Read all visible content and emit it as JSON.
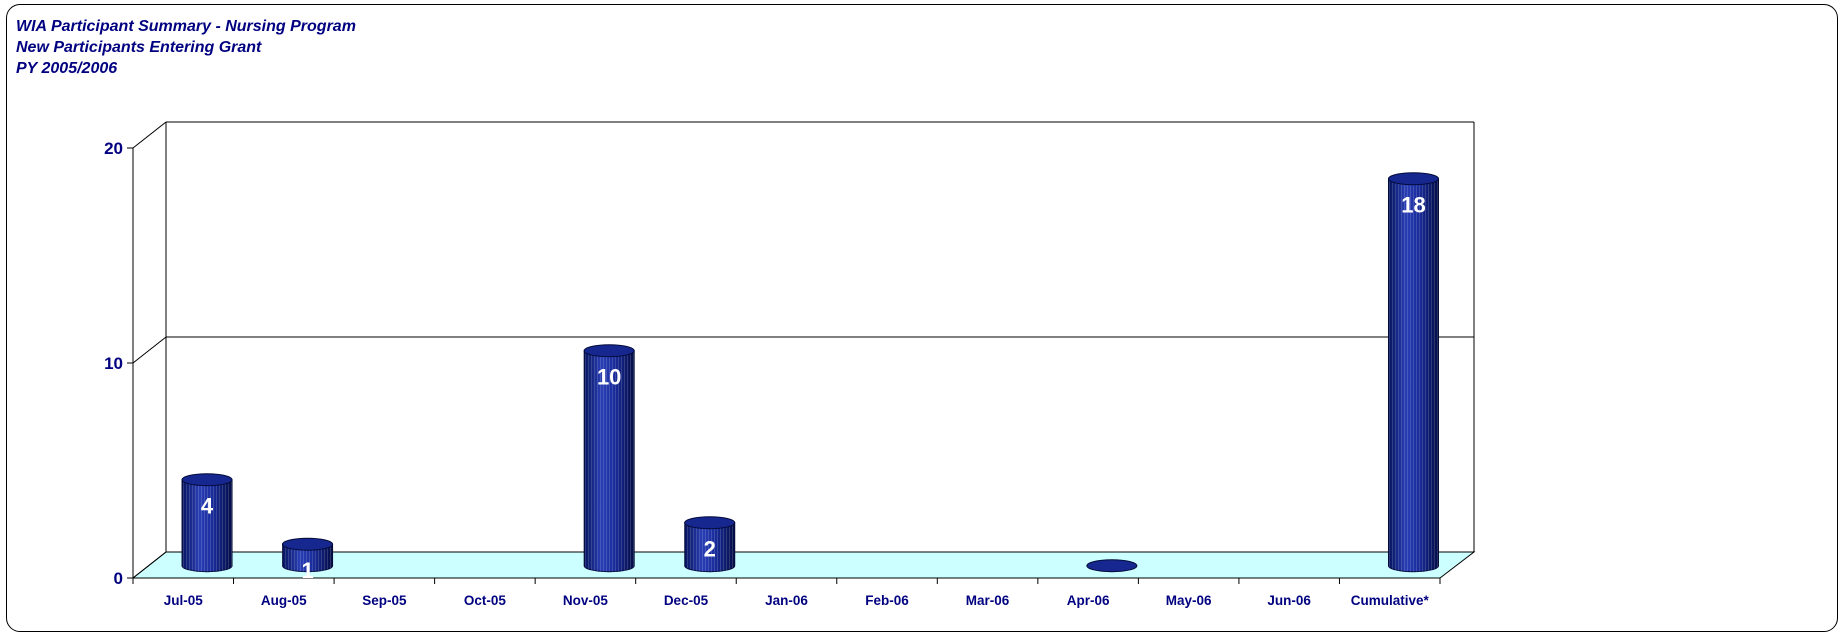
{
  "chart_data": {
    "type": "bar",
    "title": "WIA Participant Summary - Nursing Program",
    "subtitle_1": "New Participants Entering Grant",
    "subtitle_2": "PY 2005/2006",
    "categories": [
      "Jul-05",
      "Aug-05",
      "Sep-05",
      "Oct-05",
      "Nov-05",
      "Dec-05",
      "Jan-06",
      "Feb-06",
      "Mar-06",
      "Apr-06",
      "May-06",
      "Jun-06",
      "Cumulative*"
    ],
    "values": [
      4,
      1,
      null,
      null,
      10,
      2,
      null,
      null,
      null,
      0,
      null,
      null,
      18
    ],
    "data_labels": [
      "4",
      "1",
      "",
      "",
      "10",
      "2",
      "",
      "",
      "",
      "",
      "",
      "",
      "18"
    ],
    "yticks": [
      0,
      10,
      20
    ],
    "ylim": [
      0,
      20
    ],
    "grid": true,
    "style": "3d-cylinder",
    "colors": {
      "bar": "#0a1f8f",
      "floor": "#ccffff",
      "text": "#000080"
    }
  }
}
